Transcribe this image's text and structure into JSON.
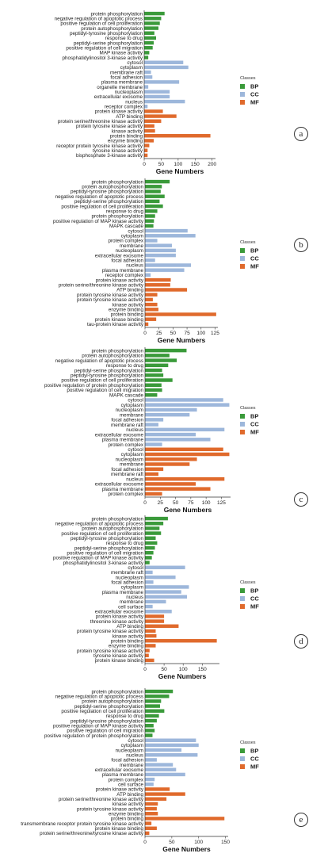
{
  "colors": {
    "BP": "#3a9a3a",
    "CC": "#9db7db",
    "MF": "#e06a2c"
  },
  "chart_data": [
    {
      "type": "bar",
      "panel_label": "a",
      "xlabel": "Gene Numbers",
      "xlim": [
        0,
        210
      ],
      "xticks": [
        0,
        50,
        100,
        150,
        200
      ],
      "legend": {
        "title": "Classes",
        "items": [
          "BP",
          "CC",
          "MF"
        ],
        "placement": "right"
      },
      "bars": [
        {
          "label": "protein phosphorylation",
          "value": 60,
          "class": "BP"
        },
        {
          "label": "negative regulation of apoptotic process",
          "value": 50,
          "class": "BP"
        },
        {
          "label": "positive regulation of cell proliferation",
          "value": 46,
          "class": "BP"
        },
        {
          "label": "protein autophosphorylation",
          "value": 42,
          "class": "BP"
        },
        {
          "label": "peptidyl-tyrosine phosphorylation",
          "value": 30,
          "class": "BP"
        },
        {
          "label": "response to drug",
          "value": 35,
          "class": "BP"
        },
        {
          "label": "peptidyl-serine phosphorylation",
          "value": 28,
          "class": "BP"
        },
        {
          "label": "positive regulation of cell migration",
          "value": 25,
          "class": "BP"
        },
        {
          "label": "MAP kinase activity",
          "value": 15,
          "class": "BP"
        },
        {
          "label": "phosphatidylinositol 3-kinase activity",
          "value": 12,
          "class": "BP"
        },
        {
          "label": "cytosol",
          "value": 115,
          "class": "CC"
        },
        {
          "label": "cytoplasm",
          "value": 130,
          "class": "CC"
        },
        {
          "label": "membrane raft",
          "value": 20,
          "class": "CC"
        },
        {
          "label": "focal adhesion",
          "value": 24,
          "class": "CC"
        },
        {
          "label": "plasma membrane",
          "value": 103,
          "class": "CC"
        },
        {
          "label": "organelle membrane",
          "value": 12,
          "class": "CC"
        },
        {
          "label": "nucleoplasm",
          "value": 75,
          "class": "CC"
        },
        {
          "label": "extracellular exosome",
          "value": 75,
          "class": "CC"
        },
        {
          "label": "nucleus",
          "value": 120,
          "class": "CC"
        },
        {
          "label": "receptor complex",
          "value": 10,
          "class": "CC"
        },
        {
          "label": "protein kinase activity",
          "value": 55,
          "class": "MF"
        },
        {
          "label": "ATP binding",
          "value": 95,
          "class": "MF"
        },
        {
          "label": "protein serine/threonine kinase activity",
          "value": 50,
          "class": "MF"
        },
        {
          "label": "protein tyrosine kinase activity",
          "value": 30,
          "class": "MF"
        },
        {
          "label": "kinase activity",
          "value": 32,
          "class": "MF"
        },
        {
          "label": "protein binding",
          "value": 195,
          "class": "MF"
        },
        {
          "label": "enzyme binding",
          "value": 28,
          "class": "MF"
        },
        {
          "label": "receptor protein tyrosine kinase activity",
          "value": 15,
          "class": "MF"
        },
        {
          "label": "tyrosine kinase activity",
          "value": 10,
          "class": "MF"
        },
        {
          "label": "bisphosphate 3-kinase activity",
          "value": 10,
          "class": "MF"
        }
      ]
    },
    {
      "type": "bar",
      "panel_label": "b",
      "xlabel": "Gene Numbers",
      "xlim": [
        0,
        130
      ],
      "xticks": [
        0,
        25,
        50,
        75,
        100,
        125
      ],
      "legend": {
        "title": "Classes",
        "items": [
          "BP",
          "CC",
          "MF"
        ],
        "placement": "right"
      },
      "bars": [
        {
          "label": "protein phosphorylation",
          "value": 44,
          "class": "BP"
        },
        {
          "label": "protein autophosphorylation",
          "value": 30,
          "class": "BP"
        },
        {
          "label": "peptidyl-tyrosine phosphorylation",
          "value": 28,
          "class": "BP"
        },
        {
          "label": "negative regulation of apoptotic process",
          "value": 35,
          "class": "BP"
        },
        {
          "label": "peptidyl-serine phosphorylation",
          "value": 26,
          "class": "BP"
        },
        {
          "label": "positive regulation of cell proliferation",
          "value": 32,
          "class": "BP"
        },
        {
          "label": "response to drug",
          "value": 22,
          "class": "BP"
        },
        {
          "label": "protein phosphorylation",
          "value": 18,
          "class": "BP"
        },
        {
          "label": "positive regulation of MAP kinase activity",
          "value": 16,
          "class": "BP"
        },
        {
          "label": "MAPK cascade",
          "value": 15,
          "class": "BP"
        },
        {
          "label": "cytosol",
          "value": 76,
          "class": "CC"
        },
        {
          "label": "cytoplasm",
          "value": 90,
          "class": "CC"
        },
        {
          "label": "protein complex",
          "value": 22,
          "class": "CC"
        },
        {
          "label": "membrane",
          "value": 48,
          "class": "CC"
        },
        {
          "label": "nucleoplasm",
          "value": 55,
          "class": "CC"
        },
        {
          "label": "extracellular exosome",
          "value": 55,
          "class": "CC"
        },
        {
          "label": "focal adhesion",
          "value": 18,
          "class": "CC"
        },
        {
          "label": "nucleus",
          "value": 82,
          "class": "CC"
        },
        {
          "label": "plasma membrane",
          "value": 70,
          "class": "CC"
        },
        {
          "label": "receptor complex",
          "value": 10,
          "class": "CC"
        },
        {
          "label": "protein kinase activity",
          "value": 46,
          "class": "MF"
        },
        {
          "label": "protein serine/threonine kinase activity",
          "value": 45,
          "class": "MF"
        },
        {
          "label": "ATP binding",
          "value": 75,
          "class": "MF"
        },
        {
          "label": "protein tyrosine kinase activity",
          "value": 22,
          "class": "MF"
        },
        {
          "label": "protein tyrosine kinase activity",
          "value": 14,
          "class": "MF"
        },
        {
          "label": "kinase activity",
          "value": 22,
          "class": "MF"
        },
        {
          "label": "enzyme binding",
          "value": 24,
          "class": "MF"
        },
        {
          "label": "protein binding",
          "value": 127,
          "class": "MF"
        },
        {
          "label": "protein kinase binding",
          "value": 20,
          "class": "MF"
        },
        {
          "label": "tau-protein kinase activity",
          "value": 6,
          "class": "MF"
        }
      ]
    },
    {
      "type": "bar",
      "panel_label": "c",
      "xlabel": "Gene Numbers",
      "xlim": [
        0,
        140
      ],
      "xticks": [
        0,
        25,
        50,
        75,
        100,
        125
      ],
      "legend": {
        "title": "Classes",
        "items": [
          "BP",
          "CC",
          "MF"
        ],
        "placement": "right"
      },
      "bars": [
        {
          "label": "protein phosphorylation",
          "value": 68,
          "class": "BP"
        },
        {
          "label": "protein autophosphorylation",
          "value": 40,
          "class": "BP"
        },
        {
          "label": "negative regulation of apoptotic process",
          "value": 52,
          "class": "BP"
        },
        {
          "label": "response to drug",
          "value": 38,
          "class": "BP"
        },
        {
          "label": "peptidyl-serine phosphorylation",
          "value": 28,
          "class": "BP"
        },
        {
          "label": "peptidyl-tyrosine phosphorylation",
          "value": 30,
          "class": "BP"
        },
        {
          "label": "positive regulation of cell proliferation",
          "value": 45,
          "class": "BP"
        },
        {
          "label": "positive regulation of protein phosphorylation",
          "value": 27,
          "class": "BP"
        },
        {
          "label": "positive regulation of cell migration",
          "value": 28,
          "class": "BP"
        },
        {
          "label": "MAPK cascade",
          "value": 20,
          "class": "BP"
        },
        {
          "label": "cytosol",
          "value": 128,
          "class": "CC"
        },
        {
          "label": "cytoplasm",
          "value": 138,
          "class": "CC"
        },
        {
          "label": "nucleoplasm",
          "value": 85,
          "class": "CC"
        },
        {
          "label": "membrane",
          "value": 73,
          "class": "CC"
        },
        {
          "label": "focal adhesion",
          "value": 30,
          "class": "CC"
        },
        {
          "label": "membrane raft",
          "value": 22,
          "class": "CC"
        },
        {
          "label": "nucleus",
          "value": 130,
          "class": "CC"
        },
        {
          "label": "extracellular exosome",
          "value": 83,
          "class": "CC"
        },
        {
          "label": "plasma membrane",
          "value": 107,
          "class": "CC"
        },
        {
          "label": "protein complex",
          "value": 28,
          "class": "CC"
        },
        {
          "label": "cytosol",
          "value": 128,
          "class": "MF"
        },
        {
          "label": "cytoplasm",
          "value": 138,
          "class": "MF"
        },
        {
          "label": "nucleoplasm",
          "value": 85,
          "class": "MF"
        },
        {
          "label": "membrane",
          "value": 73,
          "class": "MF"
        },
        {
          "label": "focal adhesion",
          "value": 30,
          "class": "MF"
        },
        {
          "label": "membrane raft",
          "value": 22,
          "class": "MF"
        },
        {
          "label": "nucleus",
          "value": 130,
          "class": "MF"
        },
        {
          "label": "extracellular exosome",
          "value": 83,
          "class": "MF"
        },
        {
          "label": "plasma membrane",
          "value": 107,
          "class": "MF"
        },
        {
          "label": "protein complex",
          "value": 28,
          "class": "MF"
        }
      ]
    },
    {
      "type": "bar",
      "panel_label": "d",
      "xlabel": "Gene Numbers",
      "xlim": [
        0,
        195
      ],
      "xticks": [
        0,
        50,
        100,
        150
      ],
      "legend": {
        "title": "Classes",
        "items": [
          "BP",
          "CC",
          "MF"
        ],
        "placement": "right"
      },
      "bars": [
        {
          "label": "protein phosphorylation",
          "value": 60,
          "class": "BP"
        },
        {
          "label": "negative regulation of apoptotic process",
          "value": 48,
          "class": "BP"
        },
        {
          "label": "protein autophosphorylation",
          "value": 38,
          "class": "BP"
        },
        {
          "label": "positive regulation of cell proliferation",
          "value": 42,
          "class": "BP"
        },
        {
          "label": "peptidyl-tyrosine phosphorylation",
          "value": 28,
          "class": "BP"
        },
        {
          "label": "response to drug",
          "value": 32,
          "class": "BP"
        },
        {
          "label": "peptidyl-serine phosphorylation",
          "value": 26,
          "class": "BP"
        },
        {
          "label": "positive regulation of cell migration",
          "value": 22,
          "class": "BP"
        },
        {
          "label": "positive regulation of MAP kinase activity",
          "value": 18,
          "class": "BP"
        },
        {
          "label": "phosphatidylinositol 3-kinase activity",
          "value": 12,
          "class": "BP"
        },
        {
          "label": "cytosol",
          "value": 105,
          "class": "CC"
        },
        {
          "label": "membrane raft",
          "value": 20,
          "class": "CC"
        },
        {
          "label": "nucleoplasm",
          "value": 80,
          "class": "CC"
        },
        {
          "label": "focal adhesion",
          "value": 22,
          "class": "CC"
        },
        {
          "label": "cytoplasm",
          "value": 115,
          "class": "CC"
        },
        {
          "label": "plasma membrane",
          "value": 95,
          "class": "CC"
        },
        {
          "label": "nucleus",
          "value": 110,
          "class": "CC"
        },
        {
          "label": "membrane",
          "value": 55,
          "class": "CC"
        },
        {
          "label": "cell surface",
          "value": 20,
          "class": "CC"
        },
        {
          "label": "extracellular exosome",
          "value": 70,
          "class": "CC"
        },
        {
          "label": "protein kinase activity",
          "value": 50,
          "class": "MF"
        },
        {
          "label": "threonine kinase activity",
          "value": 50,
          "class": "MF"
        },
        {
          "label": "ATP binding",
          "value": 88,
          "class": "MF"
        },
        {
          "label": "protein tyrosine kinase activity",
          "value": 28,
          "class": "MF"
        },
        {
          "label": "kinase activity",
          "value": 30,
          "class": "MF"
        },
        {
          "label": "protein binding",
          "value": 188,
          "class": "MF"
        },
        {
          "label": "enzyme binding",
          "value": 28,
          "class": "MF"
        },
        {
          "label": "protein tyrosine kinase activity",
          "value": 12,
          "class": "MF"
        },
        {
          "label": "tyrosine kinase activity",
          "value": 10,
          "class": "MF"
        },
        {
          "label": "protein kinase binding",
          "value": 24,
          "class": "MF"
        }
      ]
    },
    {
      "type": "bar",
      "panel_label": "e",
      "xlabel": "Gene Numbers",
      "xlim": [
        0,
        155
      ],
      "xticks": [
        0,
        50,
        100,
        150
      ],
      "legend": {
        "title": "Classes",
        "items": [
          "BP",
          "CC",
          "MF"
        ],
        "placement": "right"
      },
      "bars": [
        {
          "label": "protein phosphorylation",
          "value": 52,
          "class": "BP"
        },
        {
          "label": "negative regulation of apoptotic process",
          "value": 45,
          "class": "BP"
        },
        {
          "label": "protein autophosphorylation",
          "value": 30,
          "class": "BP"
        },
        {
          "label": "peptidyl-serine phosphorylation",
          "value": 28,
          "class": "BP"
        },
        {
          "label": "positive regulation of cell proliferation",
          "value": 36,
          "class": "BP"
        },
        {
          "label": "response to drug",
          "value": 26,
          "class": "BP"
        },
        {
          "label": "peptidyl-tyrosine phosphorylation",
          "value": 22,
          "class": "BP"
        },
        {
          "label": "positive regulation of MAP kinase activity",
          "value": 16,
          "class": "BP"
        },
        {
          "label": "positive regulation of cell migration",
          "value": 18,
          "class": "BP"
        },
        {
          "label": "positive regulation of protein phosphorylation",
          "value": 14,
          "class": "BP"
        },
        {
          "label": "cytosol",
          "value": 95,
          "class": "CC"
        },
        {
          "label": "cytoplasm",
          "value": 100,
          "class": "CC"
        },
        {
          "label": "nucleoplasm",
          "value": 68,
          "class": "CC"
        },
        {
          "label": "nucleus",
          "value": 98,
          "class": "CC"
        },
        {
          "label": "focal adhesion",
          "value": 22,
          "class": "CC"
        },
        {
          "label": "membrane",
          "value": 52,
          "class": "CC"
        },
        {
          "label": "extracellular exosome",
          "value": 58,
          "class": "CC"
        },
        {
          "label": "plasma membrane",
          "value": 75,
          "class": "CC"
        },
        {
          "label": "protein complex",
          "value": 18,
          "class": "CC"
        },
        {
          "label": "cell surface",
          "value": 16,
          "class": "CC"
        },
        {
          "label": "protein kinase activity",
          "value": 46,
          "class": "MF"
        },
        {
          "label": "ATP binding",
          "value": 75,
          "class": "MF"
        },
        {
          "label": "protein serine/threonine kinase activity",
          "value": 40,
          "class": "MF"
        },
        {
          "label": "kinase activity",
          "value": 24,
          "class": "MF"
        },
        {
          "label": "protein tyrosine kinase activity",
          "value": 22,
          "class": "MF"
        },
        {
          "label": "enzyme binding",
          "value": 24,
          "class": "MF"
        },
        {
          "label": "protein binding",
          "value": 148,
          "class": "MF"
        },
        {
          "label": "transmembrane receptor protein tyrosine kinase activity",
          "value": 12,
          "class": "MF"
        },
        {
          "label": "protein kinase binding",
          "value": 22,
          "class": "MF"
        },
        {
          "label": "protein serine/threonine/tyrosine kinase activity",
          "value": 8,
          "class": "MF"
        }
      ]
    }
  ]
}
